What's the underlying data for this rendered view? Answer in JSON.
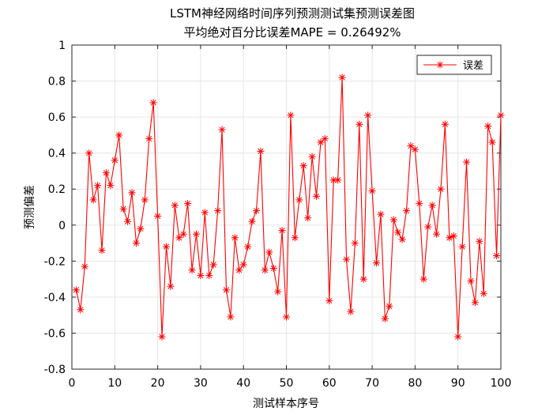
{
  "chart_data": {
    "type": "line",
    "title": "LSTM神经网络时间序列预测测试集预测误差图",
    "subtitle": "平均绝对百分比误差MAPE = 0.26492%",
    "xlabel": "测试样本序号",
    "ylabel": "预测偏差",
    "xlim": [
      0,
      100
    ],
    "ylim": [
      -0.8,
      1
    ],
    "xticks": [
      0,
      10,
      20,
      30,
      40,
      50,
      60,
      70,
      80,
      90,
      100
    ],
    "yticks": [
      -0.8,
      -0.6,
      -0.4,
      -0.2,
      0,
      0.2,
      0.4,
      0.6,
      0.8,
      1
    ],
    "grid": true,
    "legend_position": "top-right",
    "series": [
      {
        "name": "误差",
        "color": "#ff0000",
        "marker": "asterisk",
        "x": [
          1,
          2,
          3,
          4,
          5,
          6,
          7,
          8,
          9,
          10,
          11,
          12,
          13,
          14,
          15,
          16,
          17,
          18,
          19,
          20,
          21,
          22,
          23,
          24,
          25,
          26,
          27,
          28,
          29,
          30,
          31,
          32,
          33,
          34,
          35,
          36,
          37,
          38,
          39,
          40,
          41,
          42,
          43,
          44,
          45,
          46,
          47,
          48,
          49,
          50,
          51,
          52,
          53,
          54,
          55,
          56,
          57,
          58,
          59,
          60,
          61,
          62,
          63,
          64,
          65,
          66,
          67,
          68,
          69,
          70,
          71,
          72,
          73,
          74,
          75,
          76,
          77,
          78,
          79,
          80,
          81,
          82,
          83,
          84,
          85,
          86,
          87,
          88,
          89,
          90,
          91,
          92,
          93,
          94,
          95,
          96,
          97,
          98,
          99,
          100
        ],
        "y": [
          -0.36,
          -0.47,
          -0.23,
          0.4,
          0.14,
          0.22,
          -0.14,
          0.29,
          0.22,
          0.36,
          0.5,
          0.09,
          0.02,
          0.18,
          -0.1,
          -0.02,
          0.14,
          0.48,
          0.68,
          0.05,
          -0.62,
          -0.12,
          -0.34,
          0.11,
          -0.07,
          -0.05,
          0.12,
          -0.25,
          -0.05,
          -0.28,
          0.07,
          -0.28,
          -0.22,
          0.08,
          0.53,
          -0.36,
          -0.51,
          -0.07,
          -0.25,
          -0.22,
          -0.12,
          0.02,
          0.08,
          0.41,
          -0.25,
          -0.15,
          -0.24,
          -0.37,
          -0.03,
          -0.51,
          0.61,
          -0.07,
          0.14,
          0.33,
          0.04,
          0.38,
          0.16,
          0.46,
          0.48,
          -0.42,
          0.25,
          0.25,
          0.82,
          -0.19,
          -0.48,
          -0.1,
          0.56,
          -0.3,
          0.61,
          0.19,
          -0.21,
          0.06,
          -0.52,
          -0.45,
          0.03,
          -0.04,
          -0.08,
          0.08,
          0.44,
          0.42,
          0.12,
          -0.3,
          -0.01,
          0.11,
          -0.05,
          0.2,
          0.56,
          -0.07,
          -0.06,
          -0.62,
          -0.12,
          0.35,
          -0.31,
          -0.43,
          -0.09,
          -0.38,
          0.55,
          0.46,
          -0.17,
          0.61
        ]
      }
    ]
  }
}
